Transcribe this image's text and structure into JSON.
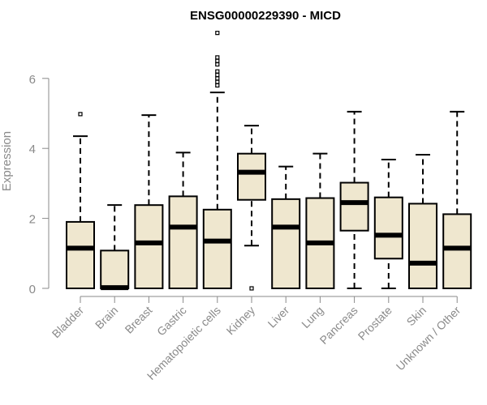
{
  "chart_data": {
    "type": "boxplot",
    "title": "ENSG00000229390 - MICD",
    "xlabel": "",
    "ylabel": "Expression",
    "ylim": [
      0,
      7.3
    ],
    "yticks": [
      0,
      2,
      4,
      6
    ],
    "grid": false,
    "legend": "none",
    "colors": {
      "box_fill": "#efe7cf",
      "stroke": "#000000",
      "axis_text": "#8a8a8a"
    },
    "categories": [
      "Bladder",
      "Brain",
      "Breast",
      "Gastric",
      "Hematopoietic cells",
      "Kidney",
      "Liver",
      "Lung",
      "Pancreas",
      "Prostate",
      "Skin",
      "Unknown / Other"
    ],
    "boxes": [
      {
        "min": 0,
        "q1": 0,
        "median": 1.15,
        "q3": 1.9,
        "max": 4.35,
        "outliers": [
          4.98
        ]
      },
      {
        "min": 0,
        "q1": 0,
        "median": 0.02,
        "q3": 1.08,
        "max": 2.38,
        "outliers": []
      },
      {
        "min": 0,
        "q1": 0,
        "median": 1.3,
        "q3": 2.38,
        "max": 4.95,
        "outliers": []
      },
      {
        "min": 0,
        "q1": 0,
        "median": 1.75,
        "q3": 2.63,
        "max": 3.88,
        "outliers": []
      },
      {
        "min": 0,
        "q1": 0,
        "median": 1.35,
        "q3": 2.25,
        "max": 5.6,
        "outliers": [
          5.8,
          5.9,
          6.0,
          6.1,
          6.2,
          6.4,
          6.5,
          6.6,
          7.3
        ]
      },
      {
        "min": 1.22,
        "q1": 2.53,
        "median": 3.32,
        "q3": 3.85,
        "max": 4.65,
        "outliers": [
          0
        ]
      },
      {
        "min": 0,
        "q1": 0,
        "median": 1.75,
        "q3": 2.55,
        "max": 3.48,
        "outliers": []
      },
      {
        "min": 0,
        "q1": 0,
        "median": 1.3,
        "q3": 2.58,
        "max": 3.85,
        "outliers": []
      },
      {
        "min": 0,
        "q1": 1.65,
        "median": 2.45,
        "q3": 3.02,
        "max": 5.05,
        "outliers": []
      },
      {
        "min": 0,
        "q1": 0.85,
        "median": 1.52,
        "q3": 2.6,
        "max": 3.68,
        "outliers": []
      },
      {
        "min": 0,
        "q1": 0,
        "median": 0.72,
        "q3": 2.42,
        "max": 3.82,
        "outliers": []
      },
      {
        "min": 0,
        "q1": 0,
        "median": 1.15,
        "q3": 2.12,
        "max": 5.05,
        "outliers": []
      }
    ]
  }
}
